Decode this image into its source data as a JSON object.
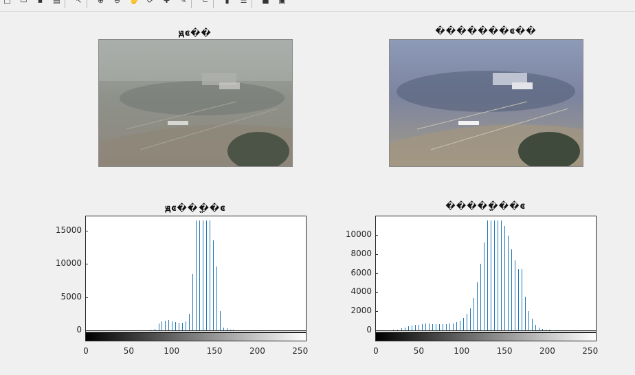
{
  "toolbar": {
    "buttons": [
      {
        "name": "new-figure-icon",
        "glyph": "□"
      },
      {
        "name": "open-file-icon",
        "glyph": "▭"
      },
      {
        "name": "save-icon",
        "glyph": "▪"
      },
      {
        "name": "print-icon",
        "glyph": "▤"
      },
      {
        "name": "pointer-icon",
        "glyph": "↖"
      },
      {
        "name": "zoom-in-icon",
        "glyph": "⊕"
      },
      {
        "name": "zoom-out-icon",
        "glyph": "⊖"
      },
      {
        "name": "pan-icon",
        "glyph": "✋"
      },
      {
        "name": "rotate-3d-icon",
        "glyph": "⟳"
      },
      {
        "name": "data-cursor-icon",
        "glyph": "✚"
      },
      {
        "name": "brush-icon",
        "glyph": "✎"
      },
      {
        "name": "link-icon",
        "glyph": "⊂"
      },
      {
        "name": "insert-colorbar-icon",
        "glyph": "▮"
      },
      {
        "name": "insert-legend-icon",
        "glyph": "☰"
      },
      {
        "name": "hide-tools-icon",
        "glyph": "■"
      },
      {
        "name": "show-tools-icon",
        "glyph": "▣"
      }
    ]
  },
  "subplots": {
    "top_left_title": "ԭͼ��",
    "top_right_title": "�������ͼ��",
    "bottom_left_title": "ԭͼ��ֱ��ͼ",
    "bottom_right_title": "�����ֱ��ͼ"
  },
  "colors": {
    "bar": "#1f77b4",
    "axes": "#262626"
  },
  "chart_data": [
    {
      "type": "bar",
      "title": "ԭͼ��ֱ��ͼ",
      "xlabel": "",
      "ylabel": "",
      "xlim": [
        0,
        255
      ],
      "ylim": [
        0,
        16500
      ],
      "yticks": [
        0,
        5000,
        10000,
        15000
      ],
      "xticks": [
        0,
        50,
        100,
        150,
        200,
        250
      ],
      "colorbar": "grayscale",
      "x": [
        75,
        80,
        85,
        88,
        92,
        96,
        100,
        104,
        108,
        112,
        116,
        120,
        124,
        128,
        132,
        136,
        140,
        144,
        148,
        152,
        156,
        160,
        164,
        168,
        172
      ],
      "values": [
        100,
        250,
        1000,
        1300,
        1400,
        1500,
        1300,
        1200,
        1100,
        1150,
        1350,
        2500,
        8500,
        17000,
        17000,
        17000,
        17000,
        17000,
        13500,
        9600,
        2900,
        450,
        300,
        150,
        80
      ]
    },
    {
      "type": "bar",
      "title": "�����ֱ��ͼ",
      "xlabel": "",
      "ylabel": "",
      "xlim": [
        0,
        255
      ],
      "ylim": [
        0,
        11500
      ],
      "yticks": [
        0,
        2000,
        4000,
        6000,
        8000,
        10000
      ],
      "xticks": [
        0,
        50,
        100,
        150,
        200,
        250
      ],
      "colorbar": "grayscale",
      "x": [
        20,
        25,
        30,
        34,
        38,
        42,
        46,
        50,
        54,
        58,
        62,
        66,
        70,
        74,
        78,
        82,
        86,
        90,
        94,
        98,
        102,
        106,
        110,
        114,
        118,
        122,
        126,
        130,
        134,
        138,
        142,
        146,
        150,
        154,
        158,
        162,
        166,
        170,
        174,
        178,
        182,
        186,
        190,
        194,
        198,
        202,
        206
      ],
      "values": [
        50,
        100,
        200,
        300,
        400,
        500,
        550,
        600,
        650,
        700,
        700,
        680,
        660,
        650,
        650,
        650,
        700,
        750,
        850,
        1000,
        1300,
        1700,
        2300,
        3400,
        5000,
        7000,
        9200,
        11500,
        11500,
        11500,
        11500,
        11500,
        10900,
        9900,
        8500,
        7300,
        6400,
        6400,
        3500,
        2000,
        1200,
        600,
        300,
        150,
        80,
        50,
        30
      ]
    }
  ]
}
